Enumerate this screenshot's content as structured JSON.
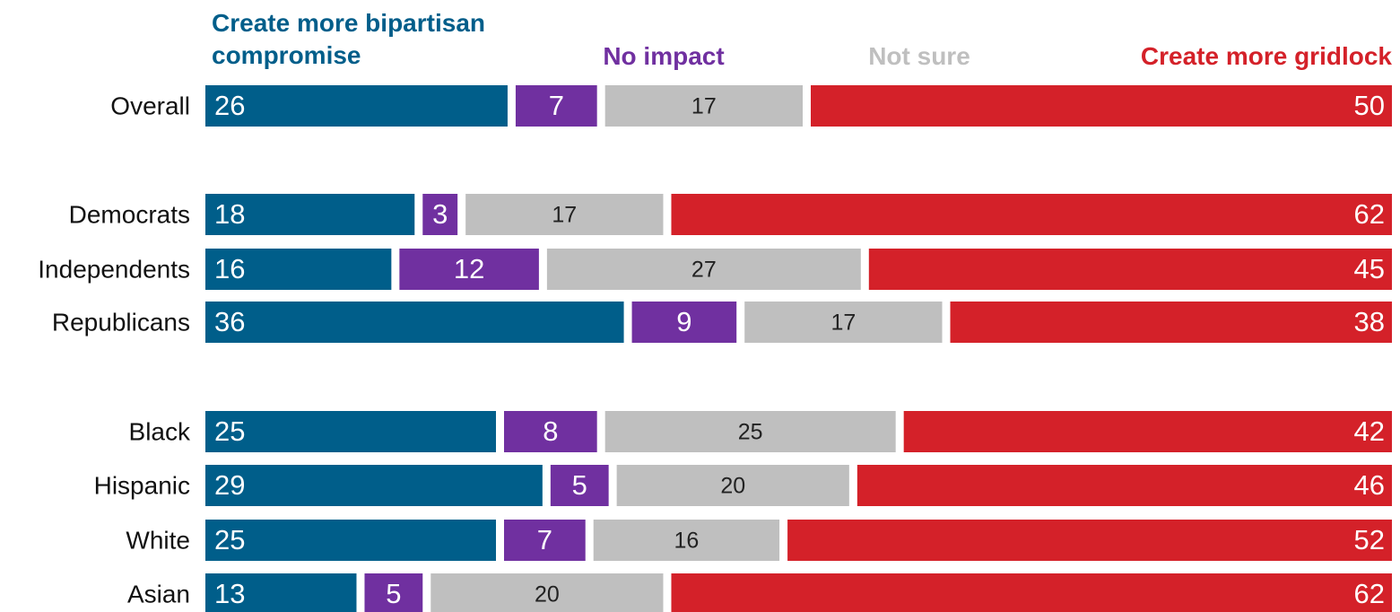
{
  "chart_data": {
    "type": "stacked_bar_horizontal",
    "categories": [
      "Overall",
      "Democrats",
      "Independents",
      "Republicans",
      "Black",
      "Hispanic",
      "White",
      "Asian"
    ],
    "series": [
      {
        "name": "Create more bipartisan compromise",
        "color": "#005e8a",
        "values": [
          26,
          18,
          16,
          36,
          25,
          29,
          25,
          13
        ]
      },
      {
        "name": "No impact",
        "color": "#7030a0",
        "values": [
          7,
          3,
          12,
          9,
          8,
          5,
          7,
          5
        ]
      },
      {
        "name": "Not sure",
        "color": "#bfbfbf",
        "values": [
          17,
          17,
          27,
          17,
          25,
          20,
          16,
          20
        ]
      },
      {
        "name": "Create more gridlock",
        "color": "#d42129",
        "values": [
          50,
          62,
          45,
          38,
          42,
          46,
          52,
          62
        ]
      }
    ]
  }
}
